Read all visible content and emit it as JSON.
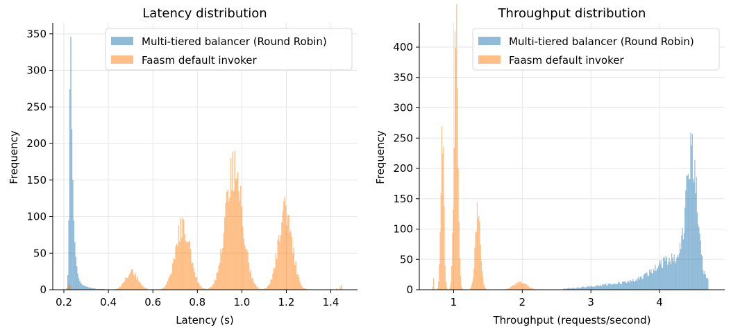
{
  "chart_data": [
    {
      "type": "histogram",
      "title": "Latency distribution",
      "xlabel": "Latency (s)",
      "ylabel": "Frequency",
      "xlim": [
        0.15,
        1.52
      ],
      "ylim": [
        0,
        365
      ],
      "xticks": [
        0.2,
        0.4,
        0.6,
        0.8,
        1.0,
        1.2,
        1.4
      ],
      "xtick_labels": [
        "0.2",
        "0.4",
        "0.6",
        "0.8",
        "1.0",
        "1.2",
        "1.4"
      ],
      "yticks": [
        0,
        50,
        100,
        150,
        200,
        250,
        300,
        350
      ],
      "ytick_labels": [
        "0",
        "50",
        "100",
        "150",
        "200",
        "250",
        "300",
        "350"
      ],
      "grid": true,
      "legend": {
        "position": "upper right",
        "entries": [
          "Multi-tiered balancer (Round Robin)",
          "Faasm default invoker"
        ]
      },
      "series": [
        {
          "name": "Multi-tiered balancer (Round Robin)",
          "color": "#1f77b4",
          "alpha": 0.5,
          "bin_width": 0.0045,
          "bins": [
            [
              0.211,
              2
            ],
            [
              0.2155,
              20
            ],
            [
              0.22,
              95
            ],
            [
              0.2245,
              274
            ],
            [
              0.229,
              346
            ],
            [
              0.2335,
              220
            ],
            [
              0.238,
              150
            ],
            [
              0.2425,
              95
            ],
            [
              0.247,
              65
            ],
            [
              0.2515,
              45
            ],
            [
              0.256,
              32
            ],
            [
              0.2605,
              22
            ],
            [
              0.265,
              16
            ],
            [
              0.2695,
              12
            ],
            [
              0.274,
              9
            ],
            [
              0.2785,
              8
            ],
            [
              0.283,
              6
            ],
            [
              0.2875,
              6
            ],
            [
              0.292,
              5
            ],
            [
              0.2965,
              5
            ],
            [
              0.301,
              4
            ],
            [
              0.3055,
              4
            ],
            [
              0.31,
              3
            ],
            [
              0.3145,
              3
            ],
            [
              0.319,
              3
            ],
            [
              0.3235,
              2
            ],
            [
              0.328,
              2
            ],
            [
              0.3325,
              2
            ],
            [
              0.337,
              2
            ],
            [
              0.3415,
              1
            ],
            [
              0.346,
              1
            ],
            [
              0.3505,
              1
            ],
            [
              0.355,
              1
            ],
            [
              0.3595,
              1
            ],
            [
              0.364,
              1
            ],
            [
              0.3685,
              1
            ],
            [
              0.373,
              1
            ],
            [
              0.3775,
              1
            ]
          ]
        },
        {
          "name": "Faasm default invoker",
          "color": "#ff7f0e",
          "alpha": 0.5,
          "bins_from_peaks": true,
          "bin_width": 0.0045,
          "x_range": [
            0.21,
            1.45
          ],
          "peaks": [
            {
              "center": 0.225,
              "height": 8,
              "sd": 0.005
            },
            {
              "center": 0.505,
              "height": 24,
              "sd": 0.028
            },
            {
              "center": 0.735,
              "height": 88,
              "sd": 0.033
            },
            {
              "center": 0.965,
              "height": 165,
              "sd": 0.038
            },
            {
              "center": 1.195,
              "height": 108,
              "sd": 0.031
            }
          ],
          "tail_values": [
            [
              1.445,
              7
            ],
            [
              1.44,
              4
            ],
            [
              1.425,
              2
            ]
          ]
        }
      ]
    },
    {
      "type": "histogram",
      "title": "Throughput distribution",
      "xlabel": "Throughput (requests/second)",
      "ylabel": "Frequency",
      "xlim": [
        0.5,
        4.95
      ],
      "ylim": [
        0,
        440
      ],
      "xticks": [
        1,
        2,
        3,
        4
      ],
      "xtick_labels": [
        "1",
        "2",
        "3",
        "4"
      ],
      "yticks": [
        0,
        50,
        100,
        150,
        200,
        250,
        300,
        350,
        400
      ],
      "ytick_labels": [
        "0",
        "50",
        "100",
        "150",
        "200",
        "250",
        "300",
        "350",
        "400"
      ],
      "grid": true,
      "legend": {
        "position": "upper right",
        "entries": [
          "Multi-tiered balancer (Round Robin)",
          "Faasm default invoker"
        ]
      },
      "series": [
        {
          "name": "Multi-tiered balancer (Round Robin)",
          "color": "#1f77b4",
          "alpha": 0.5,
          "bins_from_peaks": true,
          "bin_width": 0.012,
          "x_range": [
            2.6,
            4.7
          ],
          "peaks": [
            {
              "center": 4.47,
              "height": 195,
              "sd": 0.075
            },
            {
              "center": 4.25,
              "height": 45,
              "sd": 0.28
            },
            {
              "center": 3.7,
              "height": 12,
              "sd": 0.55
            }
          ]
        },
        {
          "name": "Faasm default invoker",
          "color": "#ff7f0e",
          "alpha": 0.5,
          "bins_from_peaks": true,
          "bin_width": 0.012,
          "x_range": [
            0.69,
            2.3
          ],
          "peaks": [
            {
              "center": 0.705,
              "height": 18,
              "sd": 0.006
            },
            {
              "center": 0.835,
              "height": 280,
              "sd": 0.022
            },
            {
              "center": 1.035,
              "height": 420,
              "sd": 0.028
            },
            {
              "center": 1.355,
              "height": 130,
              "sd": 0.038
            },
            {
              "center": 1.97,
              "height": 13,
              "sd": 0.09
            }
          ]
        }
      ]
    }
  ]
}
